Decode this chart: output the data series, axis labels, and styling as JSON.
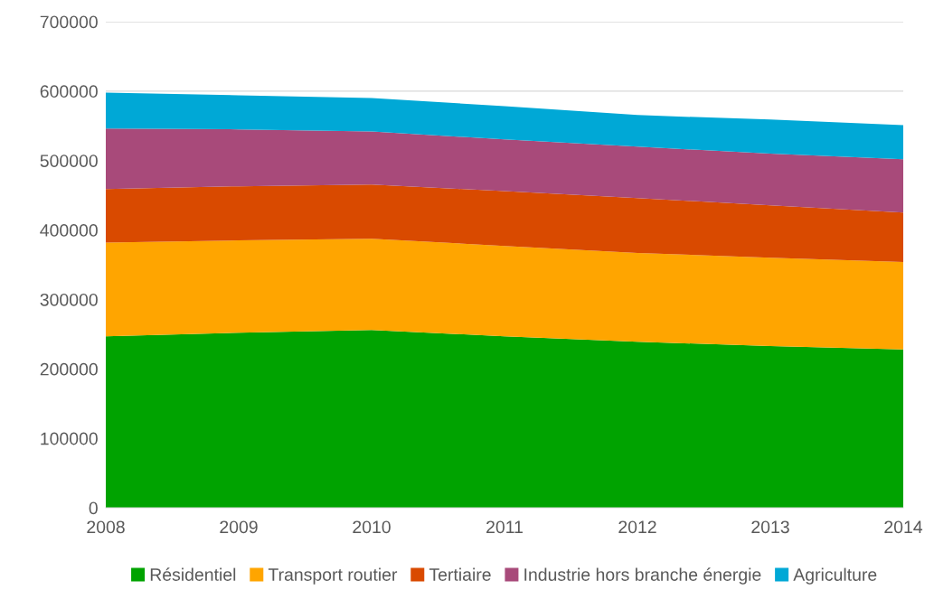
{
  "chart_data": {
    "type": "area",
    "stacked": true,
    "x": [
      2008,
      2009,
      2010,
      2011,
      2012,
      2013,
      2014
    ],
    "xlim": [
      2008,
      2014
    ],
    "xticks": [
      2008,
      2009,
      2010,
      2011,
      2012,
      2013,
      2014
    ],
    "ylim": [
      0,
      700000
    ],
    "yticks": [
      0,
      100000,
      200000,
      300000,
      400000,
      500000,
      600000,
      700000
    ],
    "grid": "y",
    "legend": "bottom",
    "series": [
      {
        "name": "Résidentiel",
        "color": "#00a300",
        "values": [
          247000,
          252000,
          256000,
          247000,
          239000,
          233000,
          228000
        ]
      },
      {
        "name": "Transport routier",
        "color": "#ffa500",
        "values": [
          135000,
          133000,
          131500,
          130000,
          128000,
          127000,
          126000
        ]
      },
      {
        "name": "Tertiaire",
        "color": "#d94a00",
        "values": [
          77000,
          78000,
          78000,
          79000,
          79000,
          75500,
          71000
        ]
      },
      {
        "name": "Industrie hors branche énergie",
        "color": "#a84a7a",
        "values": [
          87000,
          82000,
          76500,
          74500,
          74000,
          74500,
          77000
        ]
      },
      {
        "name": "Agriculture",
        "color": "#00a8d6",
        "values": [
          52000,
          49000,
          48000,
          48000,
          45500,
          49000,
          49000
        ]
      }
    ]
  }
}
